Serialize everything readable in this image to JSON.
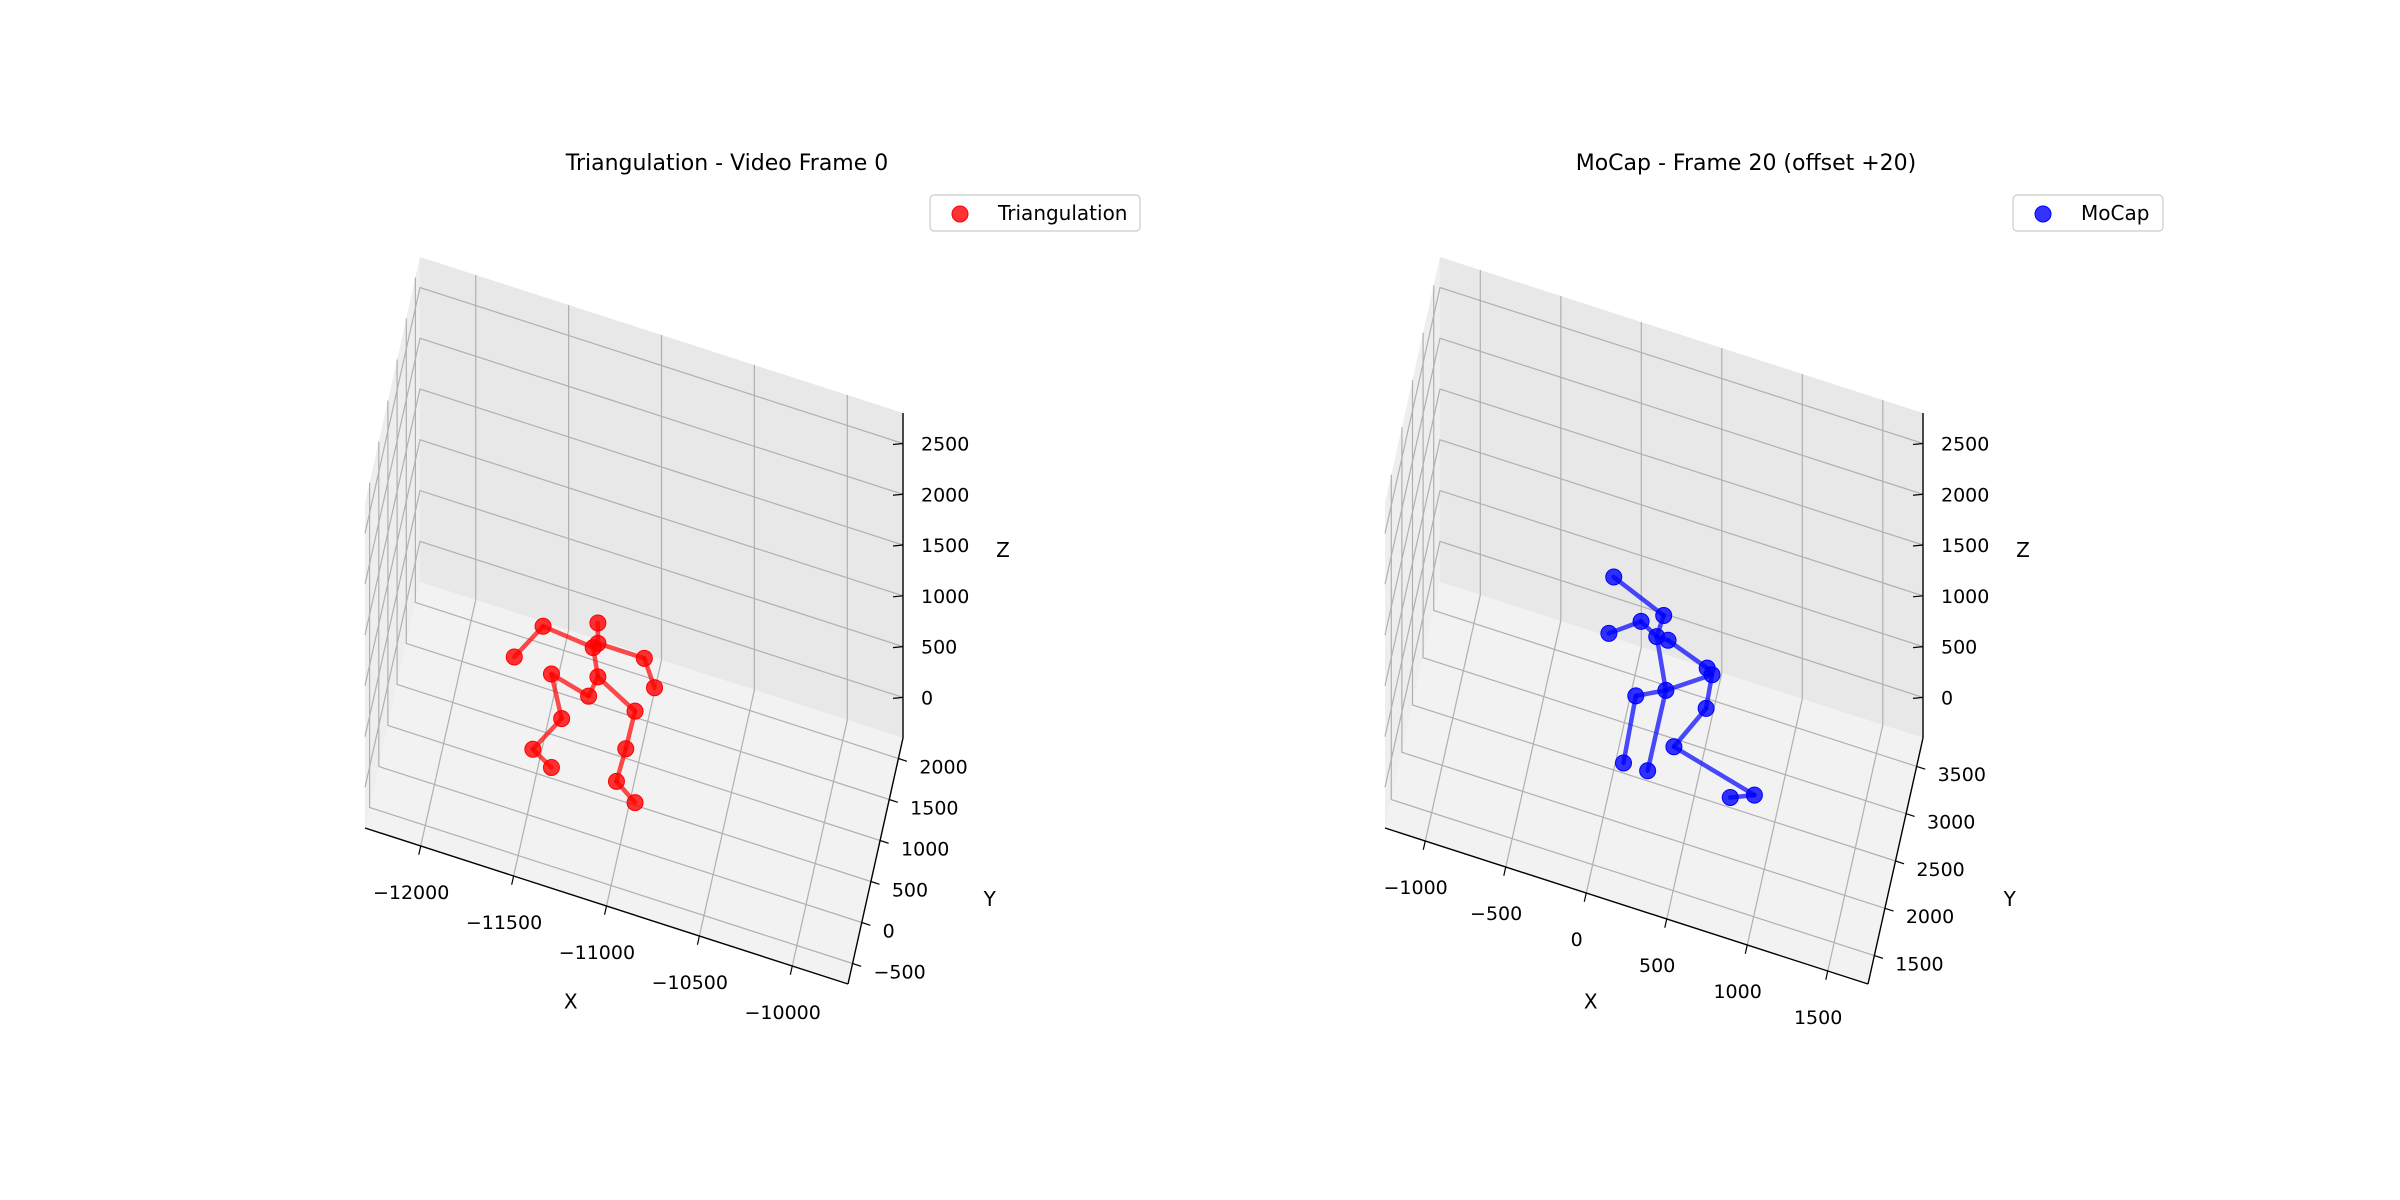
{
  "colors": {
    "pane_left": "#eeeeee",
    "pane_right": "#e8e8e8",
    "pane_floor": "#f2f2f2",
    "grid": "#b0b0b0",
    "triangulation": "#ff0000",
    "mocap": "#0000ff"
  },
  "chart_data": [
    {
      "type": "scatter",
      "title": "Triangulation - Video Frame 0",
      "xlabel": "X",
      "ylabel": "Y",
      "zlabel": "Z",
      "xlim": [
        -12300,
        -9700
      ],
      "ylim": [
        -750,
        2250
      ],
      "zlim": [
        -400,
        2800
      ],
      "xticks": [
        -12000,
        -11500,
        -11000,
        -10500,
        -10000
      ],
      "yticks": [
        -500,
        0,
        500,
        1000,
        1500,
        2000
      ],
      "zticks": [
        0,
        500,
        1000,
        1500,
        2000,
        2500
      ],
      "grid": true,
      "legend_position": "top-right",
      "series": [
        {
          "name": "Triangulation",
          "color": "#ff0000",
          "points": [
            [
              -11150,
              300,
              1450
            ],
            [
              -11150,
              300,
              1250
            ],
            [
              -11180,
              350,
              1150
            ],
            [
              -10900,
              300,
              1250
            ],
            [
              -10850,
              350,
              950
            ],
            [
              -11450,
              350,
              1200
            ],
            [
              -11600,
              300,
              850
            ],
            [
              -11150,
              300,
              920
            ],
            [
              -11200,
              300,
              700
            ],
            [
              -10950,
              300,
              700
            ],
            [
              -11400,
              300,
              800
            ],
            [
              -11350,
              350,
              350
            ],
            [
              -11500,
              300,
              0
            ],
            [
              -11400,
              300,
              -120
            ],
            [
              -11000,
              300,
              300
            ],
            [
              -11050,
              300,
              -50
            ],
            [
              -10950,
              300,
              -200
            ]
          ],
          "edges": [
            [
              0,
              1
            ],
            [
              1,
              2
            ],
            [
              1,
              3
            ],
            [
              3,
              4
            ],
            [
              2,
              5
            ],
            [
              5,
              6
            ],
            [
              2,
              7
            ],
            [
              7,
              8
            ],
            [
              7,
              9
            ],
            [
              8,
              10
            ],
            [
              10,
              11
            ],
            [
              11,
              12
            ],
            [
              12,
              13
            ],
            [
              9,
              14
            ],
            [
              14,
              15
            ],
            [
              15,
              16
            ]
          ]
        }
      ]
    },
    {
      "type": "scatter",
      "title": "MoCap - Frame 20 (offset +20)",
      "xlabel": "X",
      "ylabel": "Y",
      "zlabel": "Z",
      "xlim": [
        -1250,
        1750
      ],
      "ylim": [
        1200,
        3800
      ],
      "zlim": [
        -400,
        2800
      ],
      "xticks": [
        -1000,
        -500,
        0,
        500,
        1000,
        1500
      ],
      "yticks": [
        1500,
        2000,
        2500,
        3000,
        3500
      ],
      "zticks": [
        0,
        500,
        1000,
        1500,
        2000,
        2500
      ],
      "grid": true,
      "legend_position": "top-right",
      "series": [
        {
          "name": "MoCap",
          "color": "#0000ff",
          "points": [
            [
              0,
              2500,
              1500
            ],
            [
              330,
              2350,
              1430
            ],
            [
              300,
              2250,
              1300
            ],
            [
              370,
              2250,
              1300
            ],
            [
              150,
              2650,
              1000
            ],
            [
              -50,
              2650,
              780
            ],
            [
              600,
              2350,
              1050
            ],
            [
              630,
              2350,
              1000
            ],
            [
              600,
              2300,
              700
            ],
            [
              350,
              2300,
              750
            ],
            [
              150,
              2400,
              500
            ],
            [
              400,
              2300,
              220
            ],
            [
              100,
              2200,
              0
            ],
            [
              250,
              2200,
              0
            ],
            [
              900,
              2300,
              0
            ],
            [
              750,
              2300,
              -100
            ]
          ],
          "edges": [
            [
              0,
              1
            ],
            [
              1,
              2
            ],
            [
              2,
              3
            ],
            [
              2,
              4
            ],
            [
              4,
              5
            ],
            [
              3,
              6
            ],
            [
              6,
              7
            ],
            [
              7,
              9
            ],
            [
              9,
              10
            ],
            [
              10,
              12
            ],
            [
              2,
              9
            ],
            [
              9,
              13
            ],
            [
              8,
              11
            ],
            [
              11,
              14
            ],
            [
              14,
              15
            ],
            [
              7,
              8
            ]
          ]
        }
      ]
    }
  ]
}
